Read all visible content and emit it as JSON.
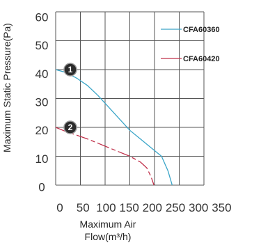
{
  "chart_data": {
    "type": "line",
    "xlabel_line1": "Maximum Air",
    "xlabel_line2": "Flow(m³/h)",
    "ylabel": "Maximum Static Pressure(Pa)",
    "xlim": [
      0,
      350
    ],
    "ylim": [
      0,
      60
    ],
    "x_ticks": [
      "0",
      "50",
      "100",
      "150",
      "200",
      "250",
      "300",
      "350"
    ],
    "y_ticks": [
      "0",
      "10",
      "20",
      "30",
      "40",
      "50",
      "60"
    ],
    "grid": true,
    "legend_position": "top-right",
    "series": [
      {
        "name": "CFA60360",
        "color": "#3aa5c8",
        "marker_label": "1",
        "x": [
          0,
          25,
          50,
          75,
          100,
          125,
          150,
          175,
          200,
          225,
          250,
          265,
          275
        ],
        "y": [
          40,
          39,
          37,
          34.5,
          31,
          27,
          23,
          19,
          16,
          13,
          10,
          5,
          0
        ]
      },
      {
        "name": "CFA60420",
        "color": "#c0304a",
        "marker_label": "2",
        "x": [
          0,
          25,
          50,
          75,
          100,
          125,
          150,
          175,
          200,
          215,
          225,
          232
        ],
        "y": [
          20,
          18.5,
          17.3,
          16,
          14.5,
          13,
          11.5,
          10,
          8,
          6,
          3,
          0
        ]
      }
    ]
  }
}
